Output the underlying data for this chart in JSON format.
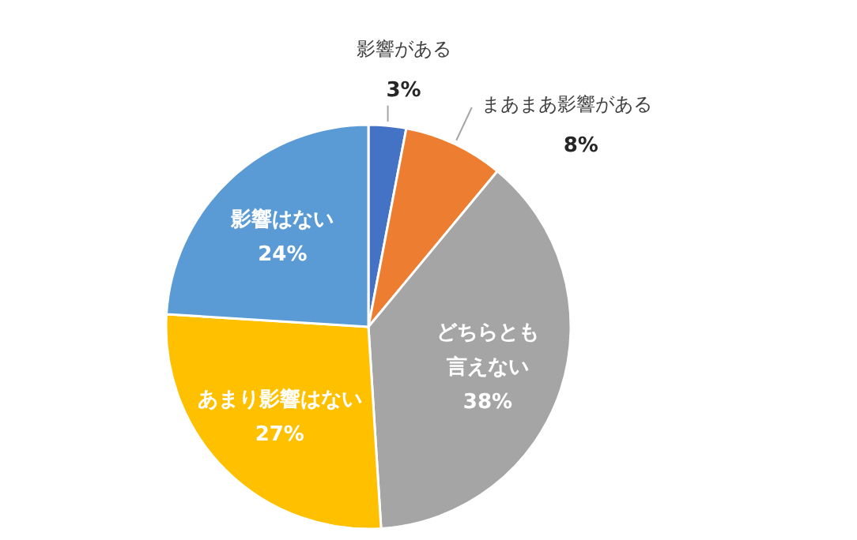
{
  "chart_data": {
    "type": "pie",
    "categories": [
      "影響がある",
      "まあまあ影響がある",
      "どちらとも言えない",
      "あまり影響はない",
      "影響はない"
    ],
    "values": [
      3,
      8,
      38,
      27,
      24
    ],
    "colors": [
      "#4472c4",
      "#ed7d31",
      "#a5a5a5",
      "#ffc000",
      "#5b9bd5"
    ],
    "value_labels": [
      "3%",
      "8%",
      "38%",
      "27%",
      "24%"
    ]
  }
}
